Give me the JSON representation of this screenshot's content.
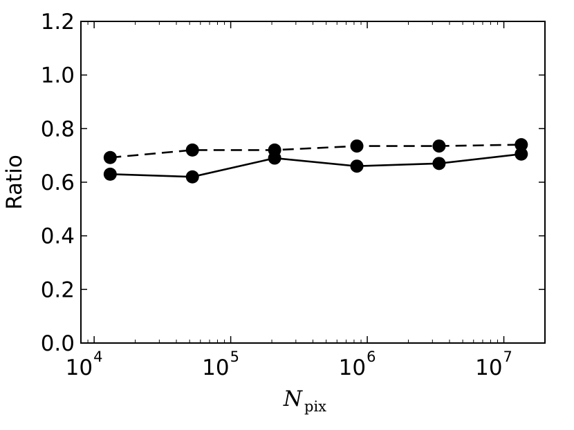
{
  "chart_data": {
    "type": "line",
    "xscale": "log",
    "xlim": [
      8000,
      20000000
    ],
    "ylim": [
      0.0,
      1.2
    ],
    "xlabel": {
      "main": "N",
      "sub": "pix"
    },
    "ylabel": "Ratio",
    "xticks": [
      {
        "value": 10000,
        "base": "10",
        "exp": "4"
      },
      {
        "value": 100000,
        "base": "10",
        "exp": "5"
      },
      {
        "value": 1000000,
        "base": "10",
        "exp": "6"
      },
      {
        "value": 10000000,
        "base": "10",
        "exp": "7"
      }
    ],
    "yticks": [
      {
        "value": 0.0,
        "label": "0.0"
      },
      {
        "value": 0.2,
        "label": "0.2"
      },
      {
        "value": 0.4,
        "label": "0.4"
      },
      {
        "value": 0.6,
        "label": "0.6"
      },
      {
        "value": 0.8,
        "label": "0.8"
      },
      {
        "value": 1.0,
        "label": "1.0"
      },
      {
        "value": 1.2,
        "label": "1.2"
      }
    ],
    "grid": false,
    "series": [
      {
        "style": "solid",
        "color": "#000000",
        "x": [
          13107,
          52429,
          209715,
          838861,
          3355443,
          13421773
        ],
        "y": [
          0.63,
          0.62,
          0.69,
          0.66,
          0.67,
          0.705
        ]
      },
      {
        "style": "dashed",
        "color": "#000000",
        "x": [
          13107,
          52429,
          209715,
          838861,
          3355443,
          13421773
        ],
        "y": [
          0.692,
          0.72,
          0.72,
          0.735,
          0.735,
          0.74
        ]
      }
    ]
  }
}
